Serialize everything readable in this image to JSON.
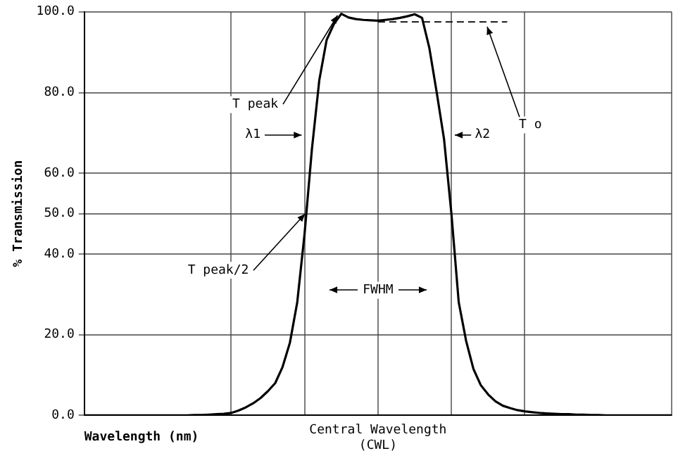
{
  "chart_data": {
    "type": "line",
    "xlabel": "Wavelength (nm)",
    "ylabel": "% Transmission",
    "categories": [
      null,
      null,
      null,
      null,
      null,
      null,
      null,
      null,
      null,
      null,
      null,
      null,
      null,
      null,
      null,
      null,
      null,
      null,
      null,
      null,
      null,
      null,
      null,
      null,
      null,
      null,
      null,
      null,
      null,
      null,
      null,
      null,
      null,
      null,
      null,
      null,
      null,
      null,
      null,
      null,
      null,
      null,
      null,
      null,
      null,
      null,
      null,
      null,
      null,
      null,
      null,
      null,
      null,
      null,
      null,
      null,
      null,
      null,
      null,
      null,
      null,
      null,
      null,
      null,
      null,
      null,
      null,
      null,
      null,
      null,
      null,
      null,
      null,
      null,
      null,
      null,
      null,
      null,
      null,
      null,
      null
    ],
    "series": [
      {
        "color": "#000000",
        "values": [
          0,
          0,
          0,
          0,
          0,
          0,
          0,
          0,
          0,
          0,
          0,
          0,
          0,
          0,
          0,
          0.1,
          0.1,
          0.2,
          0.3,
          0.4,
          0.6,
          1.2,
          2,
          3,
          4.3,
          6,
          8,
          12,
          18,
          28,
          45,
          66,
          83,
          93,
          97,
          99.5,
          98.6,
          98.2,
          98,
          97.9,
          97.8,
          98,
          98.2,
          98.5,
          98.9,
          99.4,
          98.5,
          91,
          80,
          68.4,
          50,
          28,
          18.5,
          11.5,
          7.5,
          5.2,
          3.5,
          2.4,
          1.8,
          1.3,
          1,
          0.8,
          0.6,
          0.5,
          0.4,
          0.3,
          0.3,
          0.2,
          0.2,
          0.1,
          0.1,
          0,
          0,
          0,
          0,
          0,
          0,
          0,
          0,
          0,
          0
        ]
      }
    ],
    "ylim": [
      0,
      100
    ],
    "yticks": [
      {
        "value": 0,
        "label": "0.0"
      },
      {
        "value": 20,
        "label": "20.0"
      },
      {
        "value": 40,
        "label": "40.0"
      },
      {
        "value": 50,
        "label": "50.0"
      },
      {
        "value": 60,
        "label": "60.0"
      },
      {
        "value": 80,
        "label": "80.0"
      },
      {
        "value": 100,
        "label": "100.0"
      }
    ],
    "tick_labels": "y",
    "grid": true,
    "legend": false,
    "marker": "none",
    "line_style": "solid",
    "ref_lines": [
      {
        "axis": "y",
        "value": 97.5,
        "label": "T o",
        "line_style": "dashed",
        "color": "#000000"
      }
    ],
    "annotations": [
      "T peak",
      "λ1",
      "λ2",
      "T peak/2",
      "FWHM",
      "Central Wavelength (CWL)"
    ]
  }
}
